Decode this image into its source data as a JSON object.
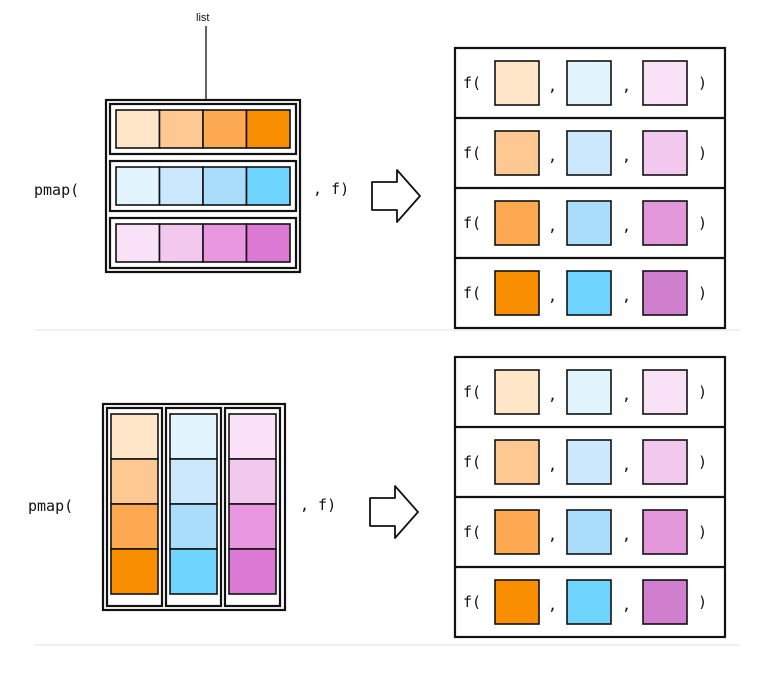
{
  "colors": {
    "orange": [
      "#FFE6C9",
      "#FDC891",
      "#FCA951",
      "#F98F00"
    ],
    "blue": [
      "#E2F4FD",
      "#CBE8FC",
      "#AADDFB",
      "#6FD5FF"
    ],
    "pink": [
      "#F9E1F7",
      "#F2C8EF",
      "#EA97E1",
      "#DC79D5"
    ],
    "result_pink": [
      "#F9E1F7",
      "#F2C8EF",
      "#E298DB",
      "#CF7FCD"
    ]
  },
  "top": {
    "list_label": "list",
    "call_prefix": "pmap(",
    "call_suffix": ", f)",
    "results": [
      {
        "fn": "f(",
        "comma1": ",",
        "comma2": ",",
        "close": ")"
      },
      {
        "fn": "f(",
        "comma1": ",",
        "comma2": ",",
        "close": ")"
      },
      {
        "fn": "f(",
        "comma1": ",",
        "comma2": ",",
        "close": ")"
      },
      {
        "fn": "f(",
        "comma1": ",",
        "comma2": ",",
        "close": ")"
      }
    ]
  },
  "bottom": {
    "call_prefix": "pmap(",
    "call_suffix": ", f)",
    "results": [
      {
        "fn": "f(",
        "comma1": ",",
        "comma2": ",",
        "close": ")"
      },
      {
        "fn": "f(",
        "comma1": ",",
        "comma2": ",",
        "close": ")"
      },
      {
        "fn": "f(",
        "comma1": ",",
        "comma2": ",",
        "close": ")"
      },
      {
        "fn": "f(",
        "comma1": ",",
        "comma2": ",",
        "close": ")"
      }
    ]
  }
}
